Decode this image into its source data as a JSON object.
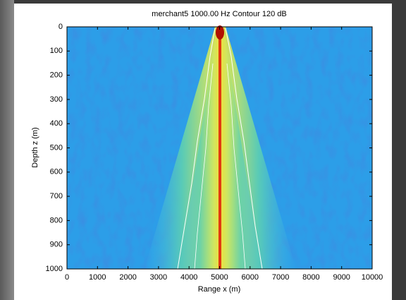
{
  "chart_data": {
    "type": "heatmap",
    "title": "merchant5 1000.00 Hz Contour 120 dB",
    "x_label": "Range x (m)",
    "y_label": "Depth z (m)",
    "xlim": [
      0,
      10000
    ],
    "xticks": [
      0,
      1000,
      2000,
      3000,
      4000,
      5000,
      6000,
      7000,
      8000,
      9000,
      10000
    ],
    "ylim": [
      0,
      1000
    ],
    "yticks": [
      0,
      100,
      200,
      300,
      400,
      500,
      600,
      700,
      800,
      900,
      1000
    ],
    "y_direction": "reverse"
  }
}
